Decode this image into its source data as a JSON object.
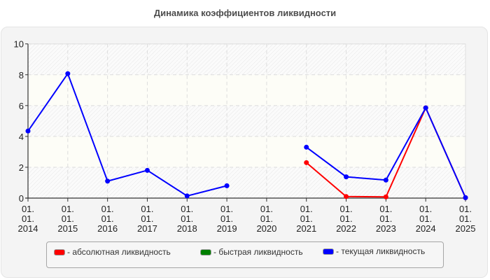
{
  "title": "Динамика коэффициентов ликвидности",
  "legend": [
    {
      "label": "- абсолютная ликвидность",
      "color": "#ff0000"
    },
    {
      "label": "- быстрая ликвидность",
      "color": "#008000"
    },
    {
      "label": "- текущая ликвидность",
      "color": "#0000ff"
    }
  ],
  "chart_data": {
    "type": "line",
    "title": "Динамика коэффициентов ликвидности",
    "xlabel": "",
    "ylabel": "",
    "ylim": [
      0,
      10
    ],
    "yticks": [
      0,
      2,
      4,
      6,
      8,
      10
    ],
    "grid": true,
    "legend_position": "bottom",
    "categories": [
      "01. 01. 2014",
      "01. 01. 2015",
      "01. 01. 2016",
      "01. 01. 2017",
      "01. 01. 2018",
      "01. 01. 2019",
      "01. 01. 2020",
      "01. 01. 2021",
      "01. 01. 2022",
      "01. 01. 2023",
      "01. 01. 2024",
      "01. 01. 2025"
    ],
    "series": [
      {
        "name": "абсолютная ликвидность",
        "color": "#ff0000",
        "values": [
          null,
          null,
          null,
          null,
          null,
          null,
          null,
          2.3,
          0.1,
          0.08,
          5.85,
          0.03
        ]
      },
      {
        "name": "быстрая ликвидность",
        "color": "#008000",
        "values": [
          null,
          null,
          null,
          null,
          null,
          null,
          null,
          null,
          null,
          null,
          null,
          null
        ]
      },
      {
        "name": "текущая ликвидность",
        "color": "#0000ff",
        "values": [
          4.35,
          8.07,
          1.1,
          1.8,
          0.14,
          0.8,
          null,
          3.3,
          1.38,
          1.17,
          5.85,
          0.03
        ]
      }
    ]
  }
}
